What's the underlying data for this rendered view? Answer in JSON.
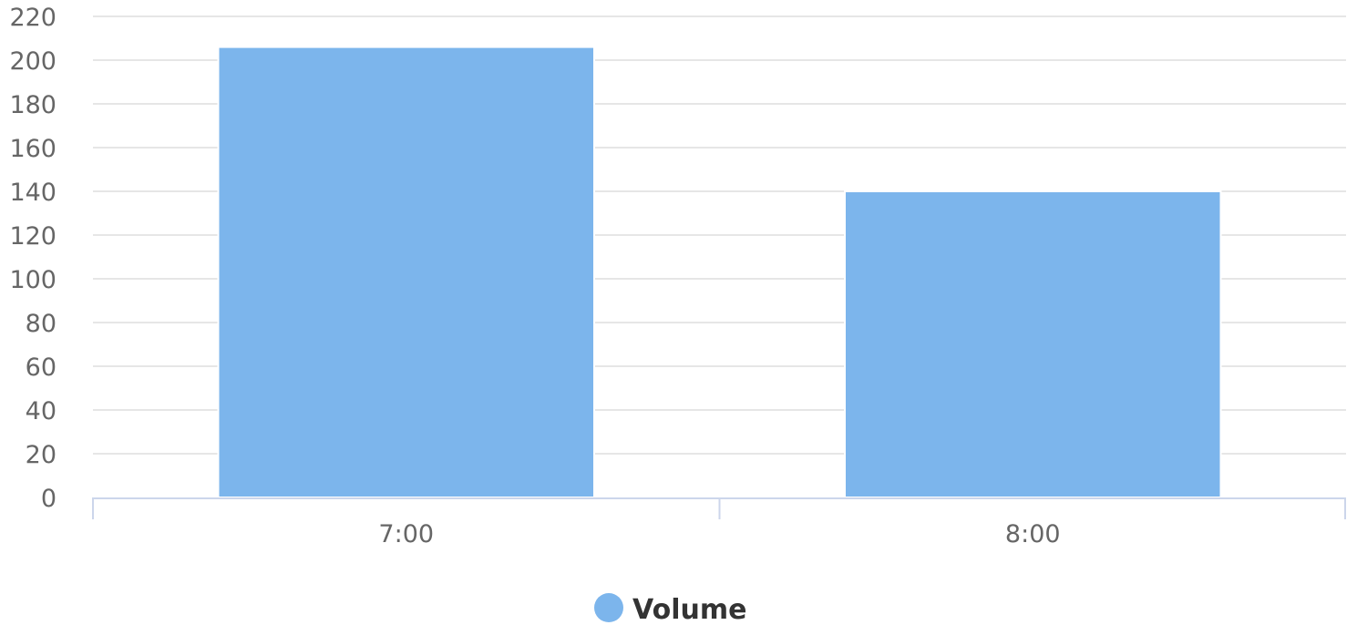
{
  "chart_data": {
    "type": "bar",
    "categories": [
      "7:00",
      "8:00"
    ],
    "series": [
      {
        "name": "Volume",
        "color": "#7cb5ec",
        "values": [
          206,
          140
        ]
      }
    ],
    "y_ticks": [
      "0",
      "20",
      "40",
      "60",
      "80",
      "100",
      "120",
      "140",
      "160",
      "180",
      "200",
      "220"
    ],
    "ylim": [
      0,
      220
    ],
    "grid": true,
    "legend": "bottom-center",
    "colors": {
      "grid": "#e6e6e6",
      "axis": "#ccd6eb",
      "tick_text": "#666666",
      "legend_text": "#333333"
    }
  }
}
